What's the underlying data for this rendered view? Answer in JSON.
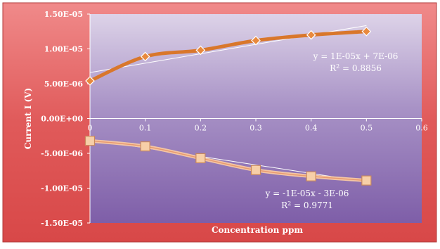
{
  "chart_data": {
    "type": "line",
    "title": "",
    "xlabel": "Concentration  ppm",
    "ylabel": "Current  I  (V)",
    "xlim": [
      0,
      0.6
    ],
    "ylim": [
      -1.5e-05,
      1.5e-05
    ],
    "x_ticks": [
      "0",
      "0.1",
      "0.2",
      "0.3",
      "0.4",
      "0.5",
      "0.6"
    ],
    "y_ticks": [
      "1.50E-05",
      "1.00E-05",
      "5.00E-06",
      "0.00E+00",
      "-5.00E-06",
      "-1.00E-05",
      "-1.50E-05"
    ],
    "y_tick_values": [
      1.5e-05,
      1e-05,
      5e-06,
      0,
      -5e-06,
      -1e-05,
      -1.5e-05
    ],
    "x_tick_values": [
      0,
      0.1,
      0.2,
      0.3,
      0.4,
      0.5,
      0.6
    ],
    "grid": false,
    "legend": "none",
    "series": [
      {
        "marker": "diamond",
        "color": "#d9772b",
        "x": [
          0,
          0.1,
          0.2,
          0.3,
          0.4,
          0.5
        ],
        "y": [
          5.4e-06,
          8.9e-06,
          9.8e-06,
          1.12e-05,
          1.2e-05,
          1.25e-05
        ],
        "trendline": {
          "slope": 1.35e-05,
          "intercept": 6.6e-06,
          "equation": "y = 1E-05x + 7E-06",
          "r2_label": "R",
          "r2_sup": "2",
          "r2_value": " = 0.8856"
        }
      },
      {
        "marker": "square",
        "color": "#f2b98f",
        "x": [
          0,
          0.1,
          0.2,
          0.3,
          0.4,
          0.5
        ],
        "y": [
          -3.2e-06,
          -4e-06,
          -5.7e-06,
          -7.4e-06,
          -8.3e-06,
          -8.9e-06
        ],
        "trendline": {
          "slope": -1.22e-05,
          "intercept": -3e-06,
          "equation": "y = -1E-05x - 3E-06",
          "r2_label": "R",
          "r2_sup": "2",
          "r2_value": " = 0.9771"
        }
      }
    ]
  }
}
